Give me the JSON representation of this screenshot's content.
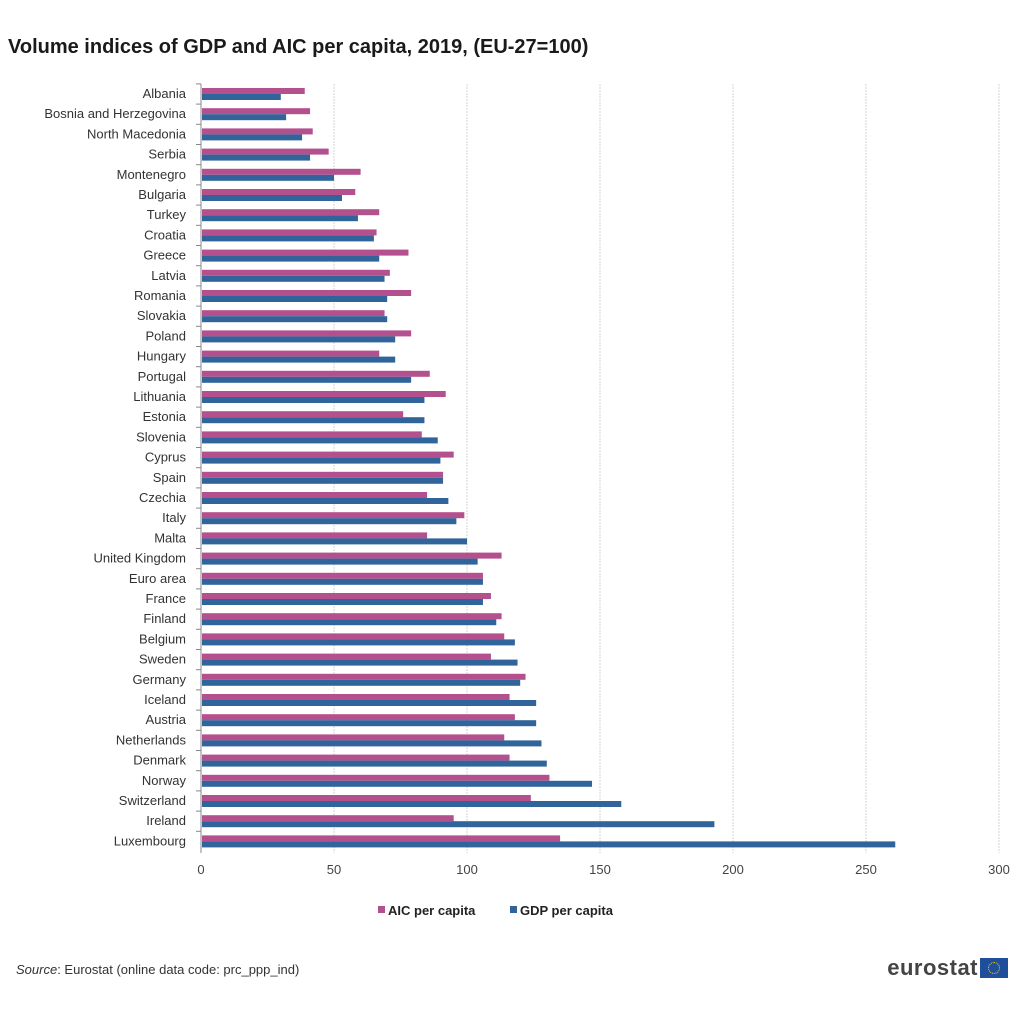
{
  "title": "Volume indices of GDP and AIC per capita, 2019, (EU-27=100)",
  "source": {
    "label": "Source",
    "text": ": Eurostat (online data code: prc_ppp_ind)"
  },
  "logo": {
    "text": "eurostat",
    "icon": "eu-flag-icon"
  },
  "colors": {
    "aic": "#b5508f",
    "gdp": "#30649a",
    "grid": "#d6d6d6"
  },
  "chart_data": {
    "type": "bar",
    "orientation": "horizontal",
    "title": "Volume indices of GDP and AIC per capita, 2019, (EU-27=100)",
    "xlabel": "",
    "ylabel": "",
    "xlim": [
      0,
      300
    ],
    "xticks": [
      0,
      50,
      100,
      150,
      200,
      250,
      300
    ],
    "grid": true,
    "legend_position": "bottom",
    "categories": [
      "Albania",
      "Bosnia and Herzegovina",
      "North Macedonia",
      "Serbia",
      "Montenegro",
      "Bulgaria",
      "Turkey",
      "Croatia",
      "Greece",
      "Latvia",
      "Romania",
      "Slovakia",
      "Poland",
      "Hungary",
      "Portugal",
      "Lithuania",
      "Estonia",
      "Slovenia",
      "Cyprus",
      "Spain",
      "Czechia",
      "Italy",
      "Malta",
      "United Kingdom",
      "Euro area",
      "France",
      "Finland",
      "Belgium",
      "Sweden",
      "Germany",
      "Iceland",
      "Austria",
      "Netherlands",
      "Denmark",
      "Norway",
      "Switzerland",
      "Ireland",
      "Luxembourg"
    ],
    "series": [
      {
        "name": "AIC per capita",
        "values": [
          39,
          41,
          42,
          48,
          60,
          58,
          67,
          66,
          78,
          71,
          79,
          69,
          79,
          67,
          86,
          92,
          76,
          83,
          95,
          91,
          85,
          99,
          85,
          113,
          106,
          109,
          113,
          114,
          109,
          122,
          116,
          118,
          114,
          116,
          131,
          124,
          95,
          135
        ]
      },
      {
        "name": "GDP per capita",
        "values": [
          30,
          32,
          38,
          41,
          50,
          53,
          59,
          65,
          67,
          69,
          70,
          70,
          73,
          73,
          79,
          84,
          84,
          89,
          90,
          91,
          93,
          96,
          100,
          104,
          106,
          106,
          111,
          118,
          119,
          120,
          126,
          126,
          128,
          130,
          147,
          158,
          193,
          261
        ]
      }
    ]
  }
}
